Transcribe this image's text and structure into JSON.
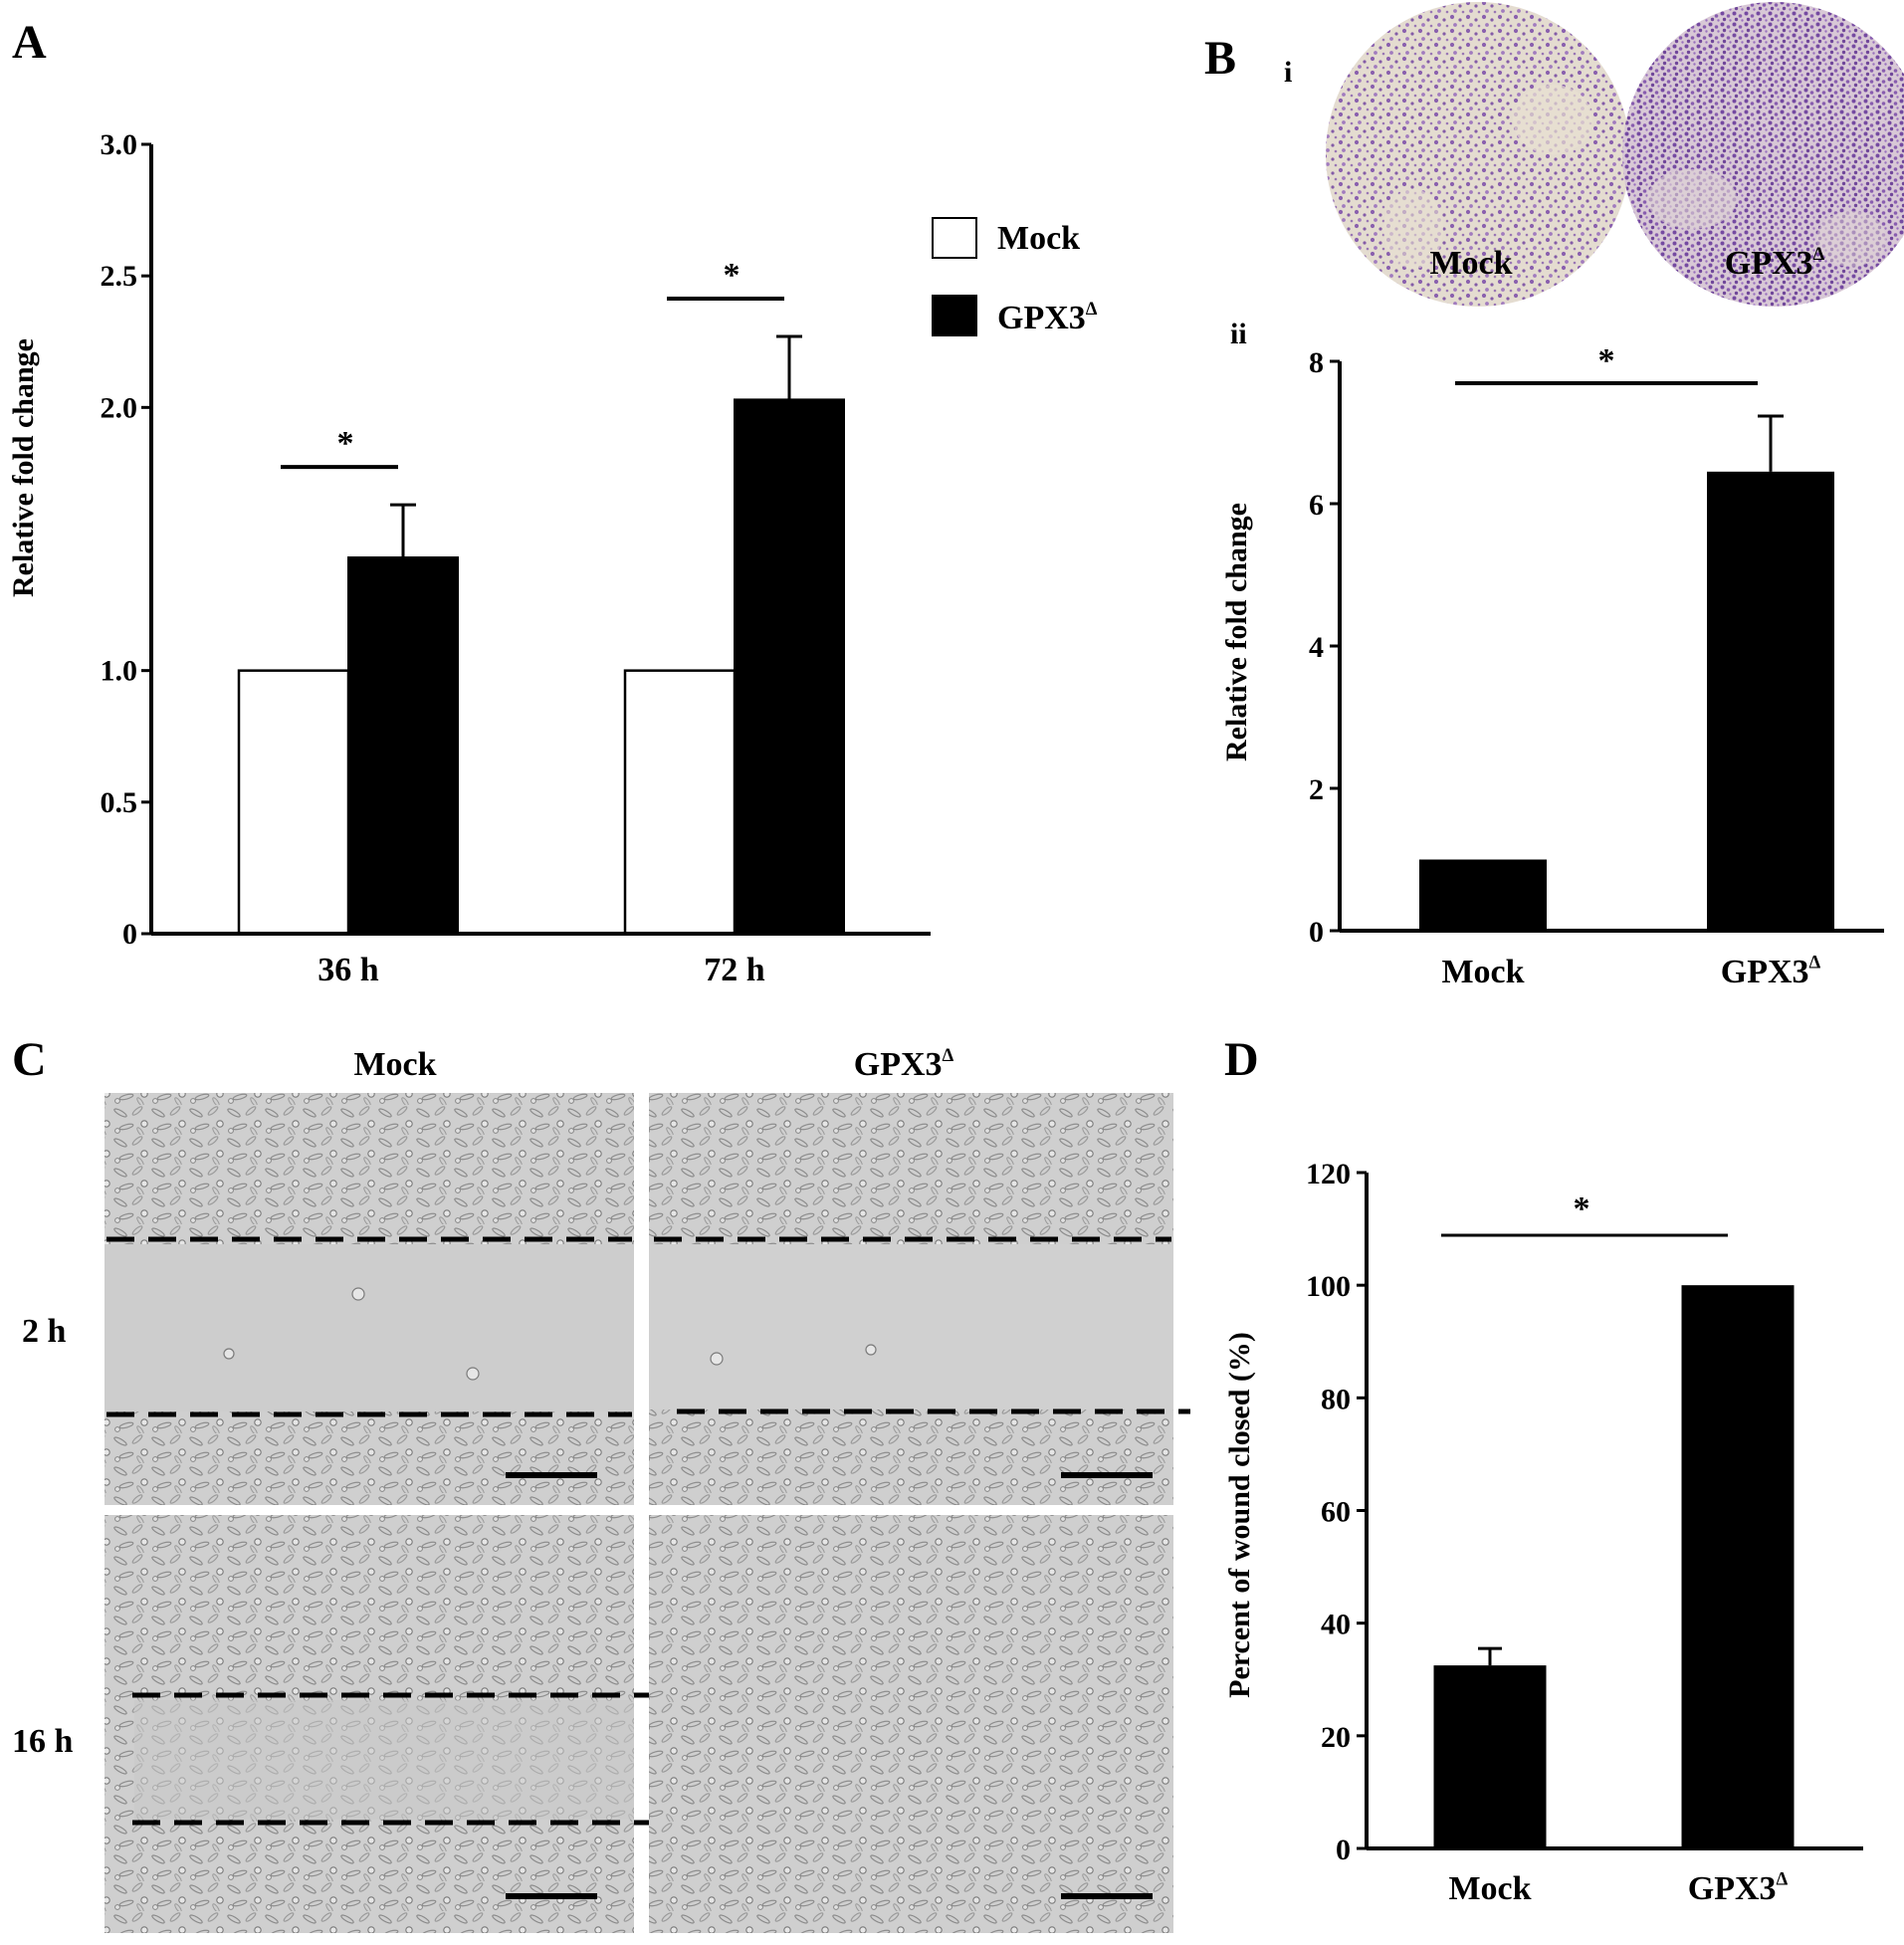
{
  "panels": {
    "A": {
      "label": "A",
      "legend": [
        {
          "name": "Mock",
          "fill": "#ffffff"
        },
        {
          "name": "GPX3",
          "sup": "Δ",
          "fill": "#000000"
        }
      ],
      "chart_data": {
        "type": "bar",
        "ylabel": "Relative fold change",
        "categories": [
          "36 h",
          "72 h"
        ],
        "series": [
          {
            "name": "Mock",
            "values": [
              1.0,
              1.0
            ]
          },
          {
            "name": "GPX3Δ",
            "values": [
              1.43,
              2.03
            ],
            "errors": [
              0.2,
              0.24
            ]
          }
        ],
        "ylim": [
          0,
          3.0
        ],
        "yticks": [
          0,
          0.5,
          1.0,
          2.0,
          2.5,
          3.0
        ],
        "yticklabels": [
          "0",
          "0.5",
          "1.0",
          "2.0",
          "2.5",
          "3.0"
        ],
        "significance": [
          "*",
          "*"
        ]
      }
    },
    "B": {
      "label": "B",
      "sub_i": "i",
      "sub_ii": "ii",
      "dish_labels": [
        {
          "text": "Mock"
        },
        {
          "text": "GPX3",
          "sup": "Δ"
        }
      ],
      "dish_stain_color": "#7a4aa8",
      "chart_data": {
        "type": "bar",
        "ylabel": "Relative fold change",
        "categories": [
          "Mock",
          "GPX3Δ"
        ],
        "category_sup": [
          "",
          "Δ"
        ],
        "values": [
          1.0,
          6.45
        ],
        "errors": [
          0,
          0.78
        ],
        "ylim": [
          0,
          8
        ],
        "yticks": [
          0,
          2,
          4,
          6,
          8
        ],
        "significance": "*"
      }
    },
    "C": {
      "label": "C",
      "col_headers": [
        {
          "text": "Mock"
        },
        {
          "text": "GPX3",
          "sup": "Δ"
        }
      ],
      "row_headers": [
        "2 h",
        "16 h"
      ]
    },
    "D": {
      "label": "D",
      "chart_data": {
        "type": "bar",
        "ylabel": "Percent of wound closed (%)",
        "categories": [
          "Mock",
          "GPX3Δ"
        ],
        "category_sup": [
          "",
          "Δ"
        ],
        "values": [
          32.5,
          100
        ],
        "errors": [
          3,
          0
        ],
        "ylim": [
          0,
          120
        ],
        "yticks": [
          0,
          20,
          40,
          60,
          80,
          100,
          120
        ],
        "significance": "*"
      }
    }
  }
}
